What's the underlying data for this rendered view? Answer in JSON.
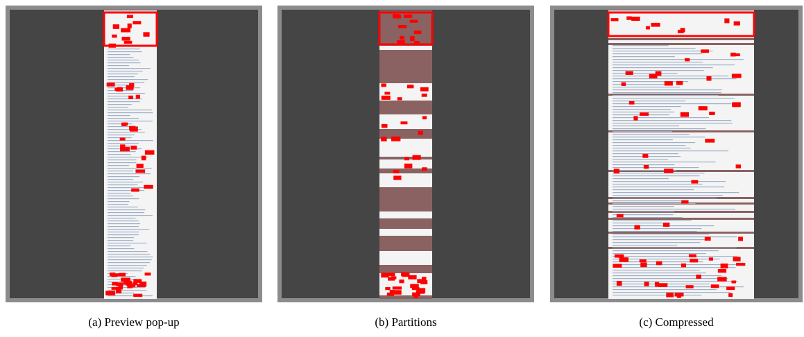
{
  "figure": {
    "panels": [
      {
        "caption": "(a) Preview pop-up"
      },
      {
        "caption": "(b) Partitions"
      },
      {
        "caption": "(c) Compressed"
      }
    ]
  }
}
